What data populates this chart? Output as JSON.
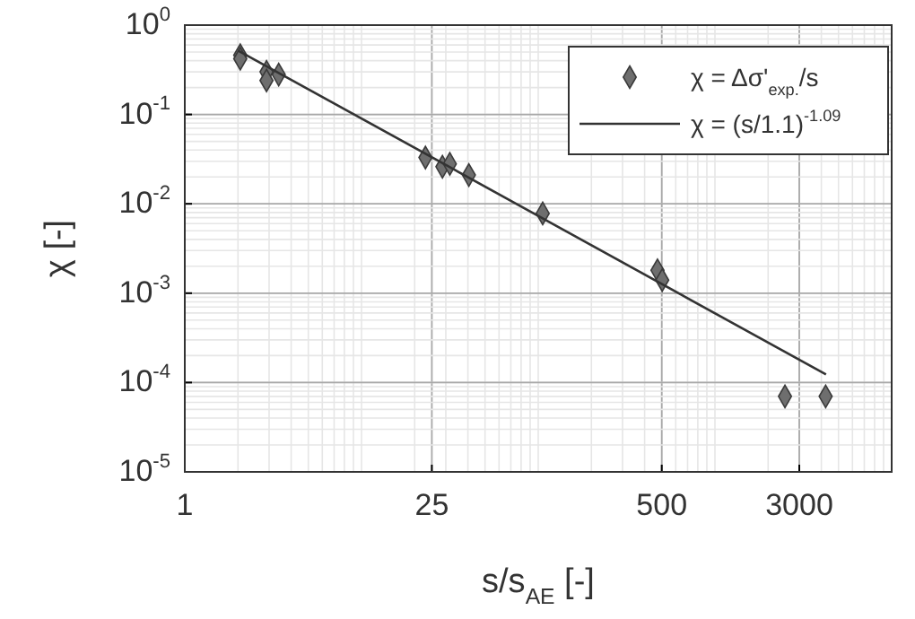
{
  "chart_data": {
    "type": "scatter",
    "log": "xy",
    "grid": true,
    "legend": "top right",
    "xlabel": "s/s$_{AE}$  [-]",
    "ylabel": "χ  [-]",
    "xlim": [
      1,
      10000
    ],
    "xticks": [
      1,
      25,
      500,
      3000
    ],
    "ylim": [
      1e-05,
      1
    ],
    "yticks": [
      {
        "value": 1e-05,
        "label": "10$^{-5}$"
      },
      {
        "value": 0.0001,
        "label": "10$^{-4}$"
      },
      {
        "value": 0.001,
        "label": "10$^{-3}$"
      },
      {
        "value": 0.01,
        "label": "10$^{-2}$"
      },
      {
        "value": 0.1,
        "label": "10$^{-1}$"
      },
      {
        "value": 1,
        "label": "10$^{0}$"
      }
    ],
    "series": [
      {
        "name": "χ =  Δσ'$_{exp.}$/s",
        "marker": "diamond",
        "color": "#6e6e6e",
        "x": [
          2.06,
          2.06,
          2.9,
          2.9,
          3.4,
          23,
          28.7,
          31.6,
          40.5,
          106,
          473,
          503,
          2490,
          4230
        ],
        "values": [
          0.46,
          0.42,
          0.3,
          0.24,
          0.28,
          0.033,
          0.026,
          0.028,
          0.021,
          0.0078,
          0.0018,
          0.0014,
          7e-05,
          7e-05
        ]
      },
      {
        "name": "χ = (s/1.1)$^{-1.09}$",
        "type": "line",
        "color": "#333333",
        "line_style": "solid",
        "x": [
          2,
          4250
        ],
        "values": [
          0.52,
          0.000123
        ]
      }
    ]
  }
}
